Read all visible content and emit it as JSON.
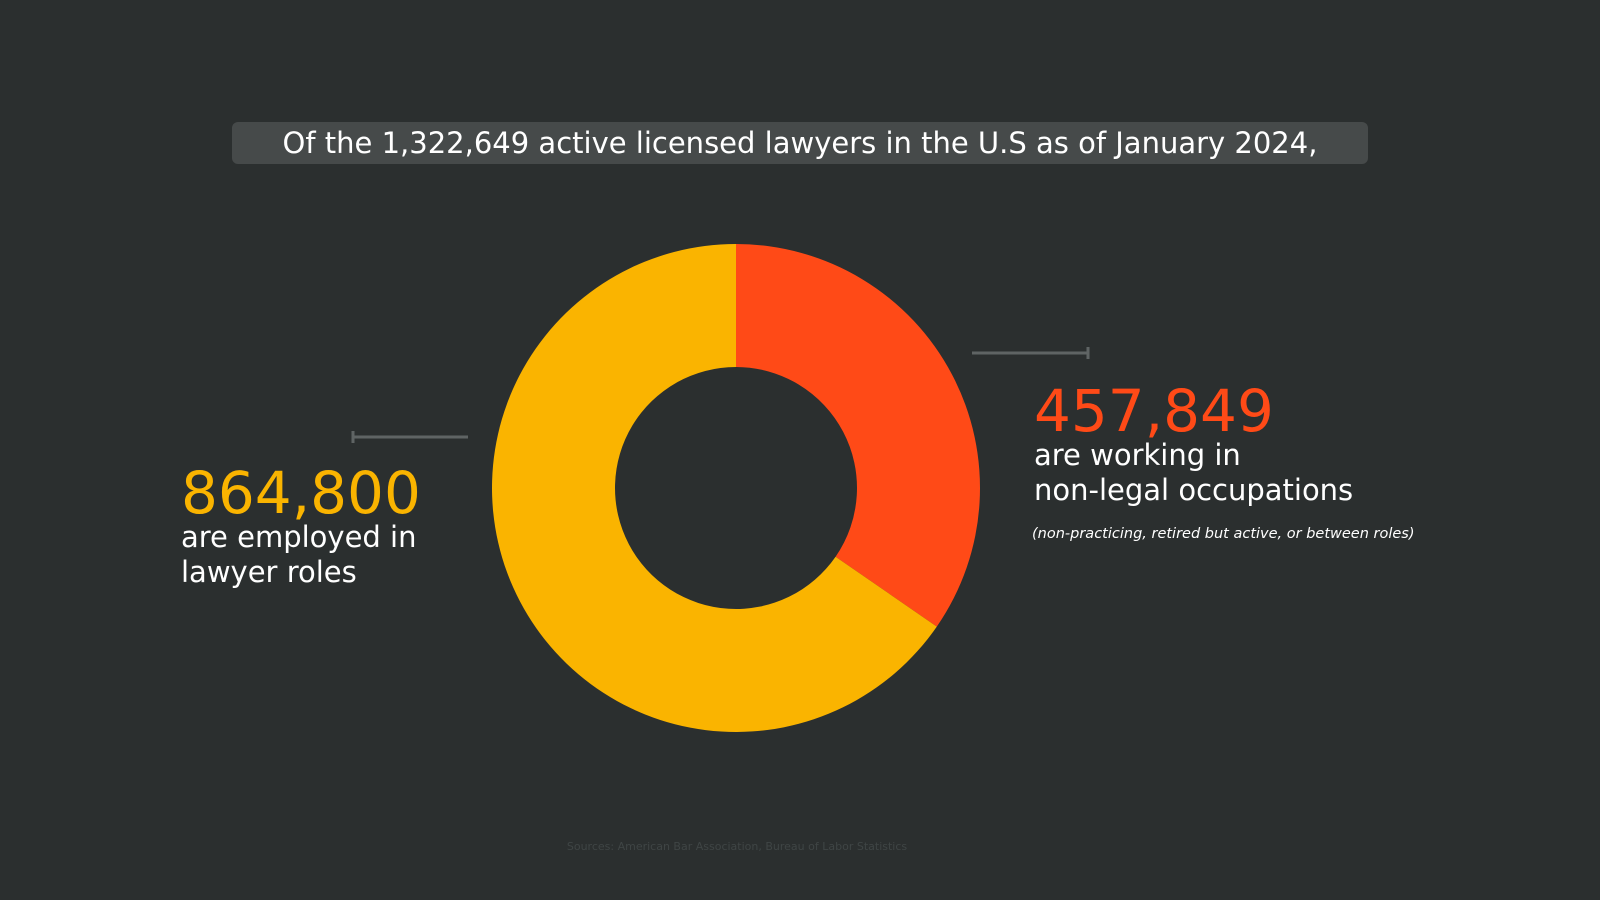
{
  "chart_data": {
    "type": "donut",
    "title": "Of the 1,322,649 active licensed lawyers in the U.S as of January 2024,",
    "values": [
      457849,
      864800
    ],
    "value_labels": [
      "457,849",
      "864,800"
    ],
    "colors": [
      "#ff4a17",
      "#fab400"
    ],
    "label_lines": [
      [
        "are working in",
        "non-legal occupations"
      ],
      [
        "are employed in",
        "lawyer roles"
      ]
    ],
    "note": "(non-practicing, retired but active, or between roles)",
    "source": "Sources: American Bar Association, Bureau of Labor Statistics"
  }
}
